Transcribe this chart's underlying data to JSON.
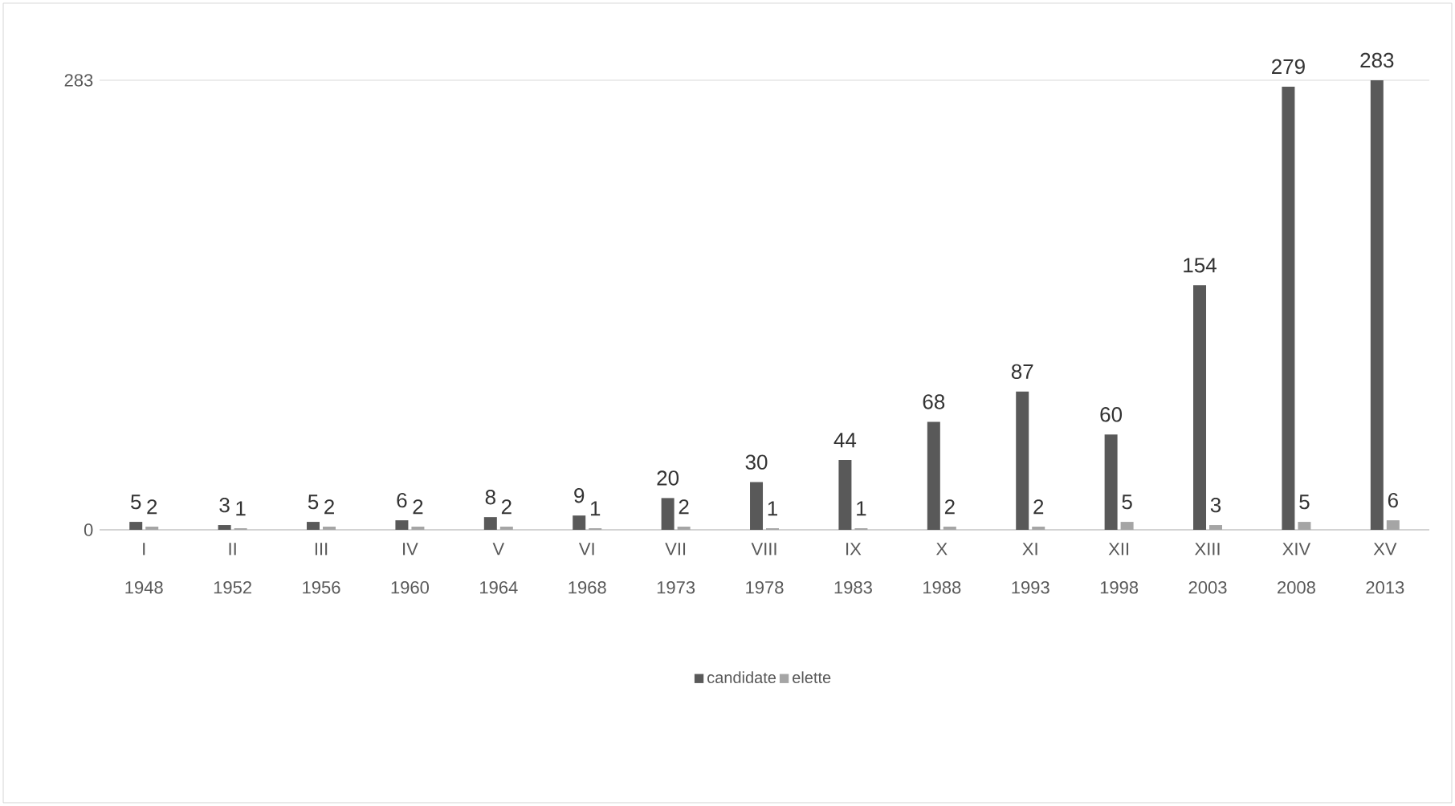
{
  "chart_data": {
    "type": "bar",
    "categories": [
      "I 1948",
      "II 1952",
      "III 1956",
      "IV 1960",
      "V 1964",
      "VI 1968",
      "VII 1973",
      "VIII 1978",
      "IX 1983",
      "X 1988",
      "XI 1993",
      "XII 1998",
      "XIII 2003",
      "XIV 2008",
      "XV 2013"
    ],
    "series": [
      {
        "name": "candidate",
        "color": "#595959",
        "values": [
          5,
          3,
          5,
          6,
          8,
          9,
          20,
          30,
          44,
          68,
          87,
          60,
          154,
          279,
          283
        ]
      },
      {
        "name": "elette",
        "color": "#a5a5a5",
        "values": [
          2,
          1,
          2,
          2,
          2,
          1,
          2,
          1,
          1,
          2,
          2,
          5,
          3,
          5,
          6
        ]
      }
    ],
    "ylim": [
      0,
      283
    ],
    "yticks": [
      0,
      283
    ],
    "grid": "y",
    "legend": "bottom",
    "data_labels": true
  }
}
